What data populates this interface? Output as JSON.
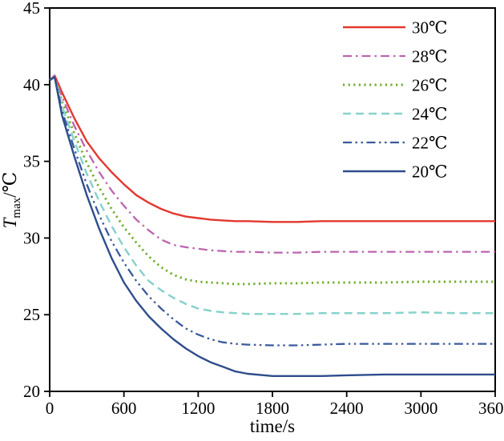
{
  "chart_data": {
    "type": "line",
    "title": "",
    "xlabel": "time/s",
    "ylabel_main": "T",
    "ylabel_sub": "max",
    "ylabel_unit": "/℃",
    "xlim": [
      0,
      3600
    ],
    "ylim": [
      20,
      45
    ],
    "x_ticks": [
      0,
      600,
      1200,
      1800,
      2400,
      3000,
      3600
    ],
    "y_ticks": [
      20,
      25,
      30,
      35,
      40,
      45
    ],
    "grid": false,
    "legend_position": "top-right-inside",
    "axis_color": "#000000",
    "x": [
      0,
      40,
      100,
      200,
      300,
      400,
      500,
      600,
      700,
      800,
      900,
      1000,
      1100,
      1200,
      1300,
      1400,
      1500,
      1600,
      1800,
      2000,
      2200,
      2400,
      2700,
      3000,
      3300,
      3600
    ],
    "series": [
      {
        "name": "30℃",
        "color": "#e2382e",
        "line_style": "solid",
        "values": [
          40.3,
          40.6,
          39.5,
          37.8,
          36.3,
          35.2,
          34.3,
          33.5,
          32.8,
          32.3,
          31.9,
          31.6,
          31.4,
          31.3,
          31.2,
          31.15,
          31.1,
          31.1,
          31.05,
          31.05,
          31.1,
          31.1,
          31.1,
          31.1,
          31.1,
          31.1
        ]
      },
      {
        "name": "28℃",
        "color": "#bd64b0",
        "line_style": "dash-dot",
        "values": [
          40.3,
          40.6,
          39.2,
          37.3,
          35.7,
          34.3,
          33.1,
          32.1,
          31.2,
          30.5,
          29.9,
          29.55,
          29.4,
          29.3,
          29.2,
          29.15,
          29.1,
          29.1,
          29.05,
          29.05,
          29.1,
          29.1,
          29.1,
          29.1,
          29.1,
          29.1
        ]
      },
      {
        "name": "26℃",
        "color": "#6fae2b",
        "line_style": "dotted",
        "values": [
          40.3,
          40.5,
          38.9,
          36.8,
          34.9,
          33.3,
          31.9,
          30.7,
          29.7,
          28.8,
          28.1,
          27.6,
          27.3,
          27.15,
          27.1,
          27.05,
          27.0,
          27.0,
          27.05,
          27.05,
          27.1,
          27.1,
          27.1,
          27.15,
          27.15,
          27.15
        ]
      },
      {
        "name": "24℃",
        "color": "#88d2cc",
        "line_style": "dashed",
        "values": [
          40.3,
          40.5,
          38.6,
          36.3,
          34.2,
          32.4,
          30.8,
          29.4,
          28.2,
          27.2,
          26.6,
          26.1,
          25.7,
          25.4,
          25.25,
          25.15,
          25.1,
          25.05,
          25.05,
          25.05,
          25.1,
          25.1,
          25.1,
          25.15,
          25.1,
          25.1
        ]
      },
      {
        "name": "22℃",
        "color": "#3b5a9d",
        "line_style": "dash-dot-dot",
        "values": [
          40.3,
          40.5,
          38.3,
          35.8,
          33.5,
          31.5,
          29.8,
          28.4,
          27.2,
          26.2,
          25.4,
          24.7,
          24.1,
          23.7,
          23.4,
          23.2,
          23.1,
          23.05,
          23.0,
          23.0,
          23.05,
          23.1,
          23.1,
          23.1,
          23.1,
          23.1
        ]
      },
      {
        "name": "20℃",
        "color": "#2e4d8c",
        "line_style": "solid",
        "values": [
          40.3,
          40.5,
          38.0,
          35.3,
          32.8,
          30.6,
          28.7,
          27.1,
          25.9,
          24.9,
          24.1,
          23.4,
          22.8,
          22.3,
          21.9,
          21.6,
          21.3,
          21.15,
          21.0,
          21.0,
          21.0,
          21.05,
          21.1,
          21.1,
          21.1,
          21.1
        ]
      }
    ]
  }
}
